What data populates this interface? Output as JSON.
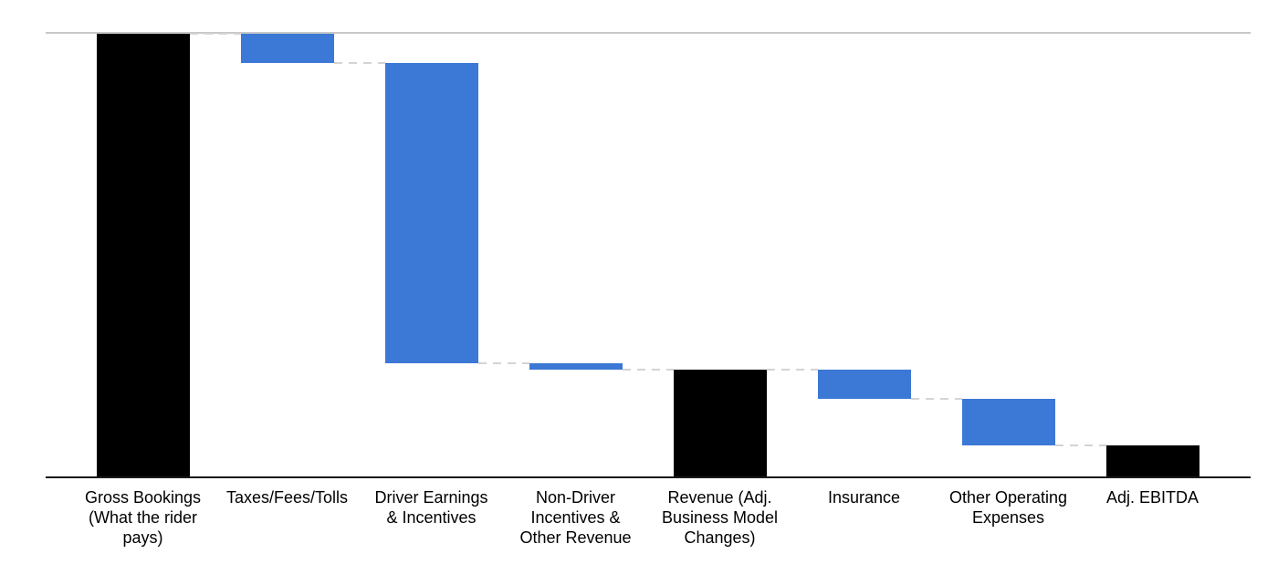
{
  "chart_data": {
    "type": "waterfall",
    "title": "",
    "xlabel": "",
    "ylabel": "",
    "ylim": [
      0,
      100
    ],
    "grid": "top-gridline-only",
    "legend": "none",
    "colors": {
      "total_bar": "#000000",
      "delta_bar": "#3c78d5",
      "connector": "#d4d4d4",
      "gridline": "#c8c8c8",
      "axis": "#1a1a1a",
      "label_text": "#000000"
    },
    "categories": [
      {
        "label": "Gross Bookings (What the rider pays)",
        "lines": [
          "Gross Bookings",
          "(What the rider",
          "pays)"
        ],
        "value": 100,
        "kind": "total"
      },
      {
        "label": "Taxes/Fees/Tolls",
        "lines": [
          "Taxes/Fees/Tolls"
        ],
        "value": -6.6,
        "kind": "delta"
      },
      {
        "label": "Driver Earnings & Incentives",
        "lines": [
          "Driver Earnings",
          "& Incentives"
        ],
        "value": -67.7,
        "kind": "delta"
      },
      {
        "label": "Non-Driver Incentives & Other Revenue",
        "lines": [
          "Non-Driver",
          "Incentives &",
          "Other Revenue"
        ],
        "value": -1.4,
        "kind": "delta"
      },
      {
        "label": "Revenue (Adj. Business Model Changes)",
        "lines": [
          "Revenue (Adj.",
          "Business Model",
          "Changes)"
        ],
        "value": 24.3,
        "kind": "total"
      },
      {
        "label": "Insurance",
        "lines": [
          "Insurance"
        ],
        "value": -6.6,
        "kind": "delta"
      },
      {
        "label": "Other Operating Expenses",
        "lines": [
          "Other Operating",
          "Expenses"
        ],
        "value": -10.5,
        "kind": "delta"
      },
      {
        "label": "Adj. EBITDA",
        "lines": [
          "Adj. EBITDA"
        ],
        "value": 7.2,
        "kind": "total"
      }
    ]
  }
}
